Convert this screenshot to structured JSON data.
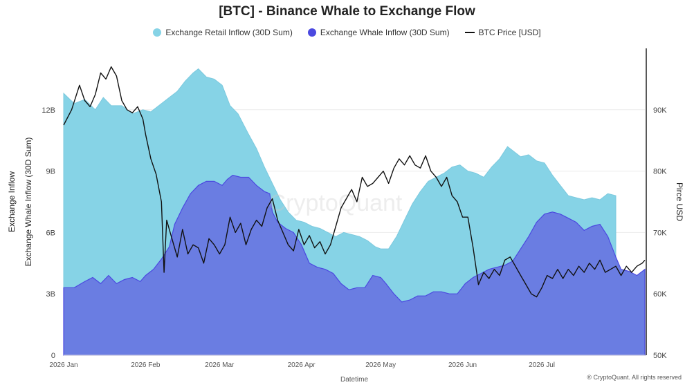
{
  "chart_data": {
    "type": "area",
    "title": "[BTC] - Binance Whale to Exchange Flow",
    "xlabel": "Datetime",
    "ylabel_left": [
      "Exchange Inflow",
      "Exchange Whale Inflow (30D Sum)"
    ],
    "ylabel_right": "Pirce USD",
    "x_ticks": [
      "2026 Jan",
      "2026 Feb",
      "2026 Mar",
      "2026 Apr",
      "2026 May",
      "2026 Jun",
      "2026 Jul"
    ],
    "x_range_days": [
      0,
      210
    ],
    "y_left_ticks": [
      "0",
      "3B",
      "6B",
      "9B",
      "12B"
    ],
    "y_left_range": [
      0,
      15
    ],
    "y_right_ticks": [
      "50K",
      "60K",
      "70K",
      "80K",
      "90K"
    ],
    "y_right_range": [
      50000,
      100000
    ],
    "grid": true,
    "legend_position": "top-center",
    "series": [
      {
        "name": "Exchange Retail Inflow (30D Sum)",
        "color": "#86d3e6",
        "kind": "area",
        "axis": "left",
        "points": [
          [
            0,
            12.8
          ],
          [
            4,
            12.3
          ],
          [
            8,
            12.5
          ],
          [
            12,
            12.0
          ],
          [
            15,
            12.6
          ],
          [
            18,
            12.2
          ],
          [
            22,
            12.2
          ],
          [
            26,
            11.8
          ],
          [
            30,
            12.0
          ],
          [
            33,
            11.9
          ],
          [
            37,
            12.3
          ],
          [
            40,
            12.6
          ],
          [
            43,
            12.9
          ],
          [
            46,
            13.4
          ],
          [
            49,
            13.8
          ],
          [
            51,
            14.0
          ],
          [
            54,
            13.6
          ],
          [
            57,
            13.5
          ],
          [
            60,
            13.2
          ],
          [
            63,
            12.2
          ],
          [
            66,
            11.8
          ],
          [
            70,
            10.8
          ],
          [
            73,
            10.1
          ],
          [
            76,
            9.2
          ],
          [
            79,
            8.4
          ],
          [
            82,
            7.6
          ],
          [
            85,
            7.0
          ],
          [
            88,
            6.6
          ],
          [
            91,
            6.5
          ],
          [
            94,
            6.3
          ],
          [
            97,
            6.2
          ],
          [
            100,
            6.0
          ],
          [
            103,
            5.8
          ],
          [
            106,
            6.0
          ],
          [
            109,
            5.9
          ],
          [
            112,
            5.8
          ],
          [
            115,
            5.6
          ],
          [
            118,
            5.3
          ],
          [
            120,
            5.2
          ],
          [
            123,
            5.2
          ],
          [
            126,
            5.8
          ],
          [
            129,
            6.6
          ],
          [
            132,
            7.4
          ],
          [
            135,
            8.0
          ],
          [
            138,
            8.5
          ],
          [
            141,
            8.7
          ],
          [
            144,
            8.9
          ],
          [
            147,
            9.2
          ],
          [
            150,
            9.3
          ],
          [
            153,
            9.0
          ],
          [
            156,
            8.9
          ],
          [
            159,
            8.7
          ],
          [
            162,
            9.2
          ],
          [
            165,
            9.6
          ],
          [
            168,
            10.2
          ],
          [
            170,
            10.0
          ],
          [
            173,
            9.7
          ],
          [
            176,
            9.8
          ],
          [
            179,
            9.5
          ],
          [
            182,
            9.4
          ],
          [
            185,
            8.8
          ],
          [
            188,
            8.3
          ],
          [
            191,
            7.8
          ],
          [
            194,
            7.7
          ],
          [
            197,
            7.6
          ],
          [
            200,
            7.7
          ],
          [
            203,
            7.6
          ],
          [
            206,
            7.9
          ],
          [
            209,
            7.8
          ]
        ]
      },
      {
        "name": "Exchange Whale Inflow (30D Sum)",
        "color": "#6a7de2",
        "kind": "area",
        "axis": "left",
        "points": [
          [
            0,
            3.3
          ],
          [
            4,
            3.3
          ],
          [
            8,
            3.6
          ],
          [
            11,
            3.8
          ],
          [
            14,
            3.5
          ],
          [
            17,
            3.9
          ],
          [
            20,
            3.5
          ],
          [
            23,
            3.7
          ],
          [
            26,
            3.8
          ],
          [
            29,
            3.6
          ],
          [
            31,
            3.9
          ],
          [
            34,
            4.2
          ],
          [
            37,
            4.7
          ],
          [
            40,
            5.3
          ],
          [
            42,
            6.4
          ],
          [
            45,
            7.2
          ],
          [
            48,
            7.9
          ],
          [
            51,
            8.3
          ],
          [
            54,
            8.5
          ],
          [
            57,
            8.5
          ],
          [
            60,
            8.3
          ],
          [
            62,
            8.6
          ],
          [
            64,
            8.8
          ],
          [
            67,
            8.7
          ],
          [
            70,
            8.7
          ],
          [
            73,
            8.3
          ],
          [
            76,
            8.0
          ],
          [
            78,
            7.9
          ],
          [
            79,
            7.0
          ],
          [
            81,
            6.5
          ],
          [
            84,
            6.2
          ],
          [
            87,
            6.0
          ],
          [
            90,
            5.4
          ],
          [
            93,
            4.5
          ],
          [
            96,
            4.3
          ],
          [
            99,
            4.2
          ],
          [
            102,
            4.0
          ],
          [
            105,
            3.5
          ],
          [
            108,
            3.2
          ],
          [
            111,
            3.3
          ],
          [
            114,
            3.3
          ],
          [
            117,
            3.9
          ],
          [
            120,
            3.8
          ],
          [
            122,
            3.5
          ],
          [
            125,
            3.0
          ],
          [
            128,
            2.6
          ],
          [
            131,
            2.7
          ],
          [
            134,
            2.9
          ],
          [
            137,
            2.9
          ],
          [
            140,
            3.1
          ],
          [
            143,
            3.1
          ],
          [
            146,
            3.0
          ],
          [
            149,
            3.0
          ],
          [
            152,
            3.5
          ],
          [
            155,
            3.8
          ],
          [
            158,
            4.0
          ],
          [
            161,
            4.2
          ],
          [
            164,
            4.3
          ],
          [
            167,
            4.4
          ],
          [
            170,
            4.6
          ],
          [
            173,
            5.2
          ],
          [
            176,
            5.8
          ],
          [
            179,
            6.5
          ],
          [
            182,
            6.9
          ],
          [
            185,
            7.0
          ],
          [
            188,
            6.9
          ],
          [
            191,
            6.7
          ],
          [
            194,
            6.5
          ],
          [
            197,
            6.1
          ],
          [
            200,
            6.3
          ],
          [
            203,
            6.4
          ],
          [
            206,
            5.8
          ],
          [
            209,
            4.8
          ],
          [
            211,
            4.2
          ],
          [
            214,
            4.1
          ],
          [
            217,
            3.9
          ],
          [
            220,
            4.2
          ]
        ]
      },
      {
        "name": "BTC Price [USD]",
        "color": "#111111",
        "kind": "line",
        "axis": "right",
        "points": [
          [
            0,
            87500
          ],
          [
            3,
            90000
          ],
          [
            6,
            94000
          ],
          [
            8,
            91500
          ],
          [
            10,
            90500
          ],
          [
            12,
            92500
          ],
          [
            14,
            96000
          ],
          [
            16,
            95000
          ],
          [
            18,
            97000
          ],
          [
            20,
            95500
          ],
          [
            22,
            91500
          ],
          [
            24,
            90000
          ],
          [
            26,
            89500
          ],
          [
            28,
            90500
          ],
          [
            30,
            88500
          ],
          [
            31,
            86000
          ],
          [
            33,
            82000
          ],
          [
            35,
            79500
          ],
          [
            37,
            75000
          ],
          [
            38,
            63500
          ],
          [
            39,
            72000
          ],
          [
            41,
            69000
          ],
          [
            43,
            66000
          ],
          [
            45,
            70500
          ],
          [
            47,
            66500
          ],
          [
            49,
            68000
          ],
          [
            51,
            67500
          ],
          [
            53,
            65000
          ],
          [
            55,
            69000
          ],
          [
            57,
            68000
          ],
          [
            59,
            66500
          ],
          [
            61,
            68000
          ],
          [
            63,
            72500
          ],
          [
            65,
            70000
          ],
          [
            67,
            71500
          ],
          [
            69,
            68000
          ],
          [
            71,
            70500
          ],
          [
            73,
            72000
          ],
          [
            75,
            71000
          ],
          [
            77,
            74000
          ],
          [
            79,
            75500
          ],
          [
            81,
            72000
          ],
          [
            83,
            70000
          ],
          [
            85,
            68000
          ],
          [
            87,
            67000
          ],
          [
            89,
            70500
          ],
          [
            91,
            68000
          ],
          [
            93,
            69500
          ],
          [
            95,
            67500
          ],
          [
            97,
            68500
          ],
          [
            99,
            66500
          ],
          [
            101,
            68000
          ],
          [
            103,
            71000
          ],
          [
            105,
            74000
          ],
          [
            107,
            75500
          ],
          [
            109,
            77000
          ],
          [
            111,
            75000
          ],
          [
            113,
            79000
          ],
          [
            115,
            77500
          ],
          [
            117,
            78000
          ],
          [
            119,
            79000
          ],
          [
            121,
            80000
          ],
          [
            123,
            78000
          ],
          [
            125,
            80500
          ],
          [
            127,
            82000
          ],
          [
            129,
            81000
          ],
          [
            131,
            82500
          ],
          [
            133,
            81000
          ],
          [
            135,
            80500
          ],
          [
            137,
            82500
          ],
          [
            139,
            80000
          ],
          [
            141,
            79000
          ],
          [
            143,
            77500
          ],
          [
            145,
            79000
          ],
          [
            147,
            76000
          ],
          [
            149,
            75000
          ],
          [
            151,
            72500
          ],
          [
            153,
            72500
          ],
          [
            155,
            67500
          ],
          [
            157,
            61500
          ],
          [
            159,
            63500
          ],
          [
            161,
            62500
          ],
          [
            163,
            64000
          ],
          [
            165,
            63000
          ],
          [
            167,
            65500
          ],
          [
            169,
            66000
          ],
          [
            171,
            64500
          ],
          [
            173,
            63000
          ],
          [
            175,
            61500
          ],
          [
            177,
            60000
          ],
          [
            179,
            59500
          ],
          [
            181,
            61000
          ],
          [
            183,
            63000
          ],
          [
            185,
            62500
          ],
          [
            187,
            64000
          ],
          [
            189,
            62500
          ],
          [
            191,
            64000
          ],
          [
            193,
            63000
          ],
          [
            195,
            64500
          ],
          [
            197,
            63500
          ],
          [
            199,
            65000
          ],
          [
            201,
            64000
          ],
          [
            203,
            65500
          ],
          [
            205,
            63500
          ],
          [
            207,
            64000
          ],
          [
            209,
            64500
          ],
          [
            211,
            63000
          ],
          [
            213,
            64500
          ],
          [
            215,
            63500
          ],
          [
            217,
            64500
          ],
          [
            219,
            65000
          ],
          [
            220,
            65500
          ]
        ]
      }
    ],
    "watermark": "CryptoQuant",
    "footer": "® CryptoQuant. All rights reserved"
  },
  "legend_items": [
    {
      "label": "Exchange Retail Inflow (30D Sum)",
      "color": "#86d3e6",
      "shape": "dot"
    },
    {
      "label": "Exchange Whale Inflow (30D Sum)",
      "color": "#4b49e0",
      "shape": "dot"
    },
    {
      "label": "BTC Price [USD]",
      "color": "#111111",
      "shape": "line"
    }
  ]
}
